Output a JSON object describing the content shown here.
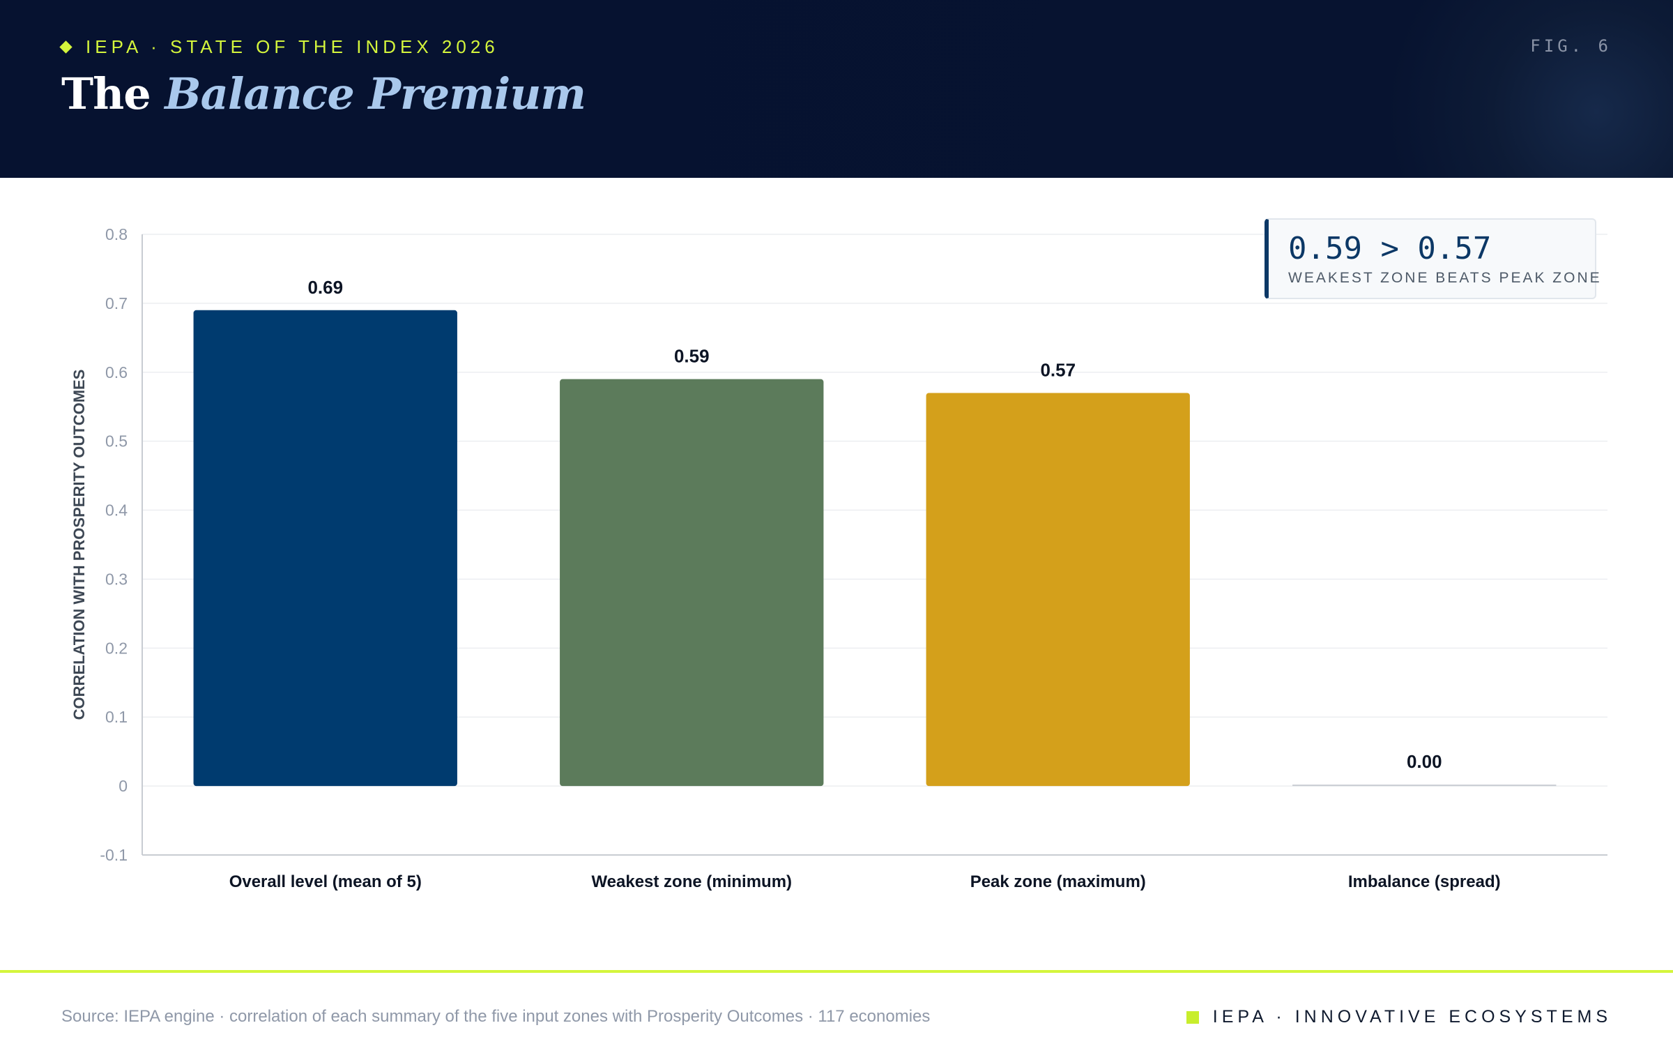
{
  "header": {
    "kicker": "IEPA · STATE OF THE INDEX 2026",
    "fig_label": "FIG. 6",
    "title_main": "The",
    "title_accent": "Balance Premium"
  },
  "callout": {
    "headline": "0.59 > 0.57",
    "caption": "WEAKEST ZONE BEATS PEAK ZONE"
  },
  "chart_data": {
    "type": "bar",
    "categories": [
      "Overall level (mean of 5)",
      "Weakest zone (minimum)",
      "Peak zone (maximum)",
      "Imbalance (spread)"
    ],
    "values": [
      0.69,
      0.59,
      0.57,
      0.0
    ],
    "data_labels": [
      "0.69",
      "0.59",
      "0.57",
      "0.00"
    ],
    "colors": [
      "#003b6f",
      "#5c7b5b",
      "#d4a01b",
      "#c9cdd3"
    ],
    "ylabel": "CORRELATION WITH PROSPERITY OUTCOMES",
    "xlabel": "",
    "ylim": [
      -0.1,
      0.8
    ],
    "yticks": [
      -0.1,
      0,
      0.1,
      0.2,
      0.3,
      0.4,
      0.5,
      0.6,
      0.7,
      0.8
    ],
    "ytick_labels": [
      "-0.1",
      "0",
      "0.1",
      "0.2",
      "0.3",
      "0.4",
      "0.5",
      "0.6",
      "0.7",
      "0.8"
    ],
    "grid": true,
    "legend": "none"
  },
  "footer": {
    "source": "Source: IEPA engine · correlation of each summary of the five input zones with Prosperity Outcomes · 117 economies",
    "brand": "IEPA · INNOVATIVE ECOSYSTEMS"
  }
}
